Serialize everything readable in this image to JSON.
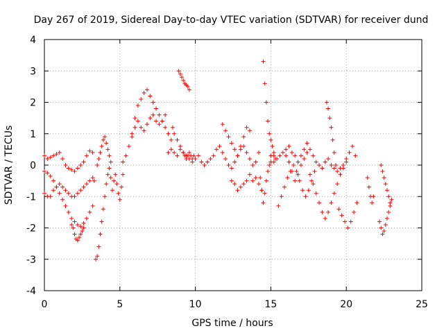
{
  "chart_data": {
    "type": "scatter",
    "title": "Day 267 of 2019, Sidereal Day-to-day VTEC variation (SDTVAR) for receiver dund",
    "xlabel": "GPS time / hours",
    "ylabel": "SDTVAR / TECUs",
    "xlim": [
      0,
      25
    ],
    "ylim": [
      -4,
      4
    ],
    "xticks": [
      0,
      5,
      10,
      15,
      20,
      25
    ],
    "yticks": [
      -4,
      -3,
      -2,
      -1,
      0,
      1,
      2,
      3,
      4
    ],
    "grid": true,
    "marker": "+",
    "color": "#ff0000",
    "series": [
      {
        "name": "SDTVAR",
        "x": [
          0.0,
          0.2,
          0.4,
          0.6,
          0.8,
          1.0,
          1.2,
          1.4,
          1.6,
          1.8,
          2.0,
          2.2,
          2.4,
          2.6,
          2.8,
          3.0,
          3.2,
          0.0,
          0.2,
          0.4,
          0.6,
          0.8,
          1.0,
          1.2,
          1.4,
          1.6,
          1.8,
          2.0,
          2.2,
          2.4,
          2.6,
          2.8,
          3.0,
          3.2,
          0.0,
          0.2,
          0.4,
          0.6,
          0.8,
          1.0,
          1.2,
          1.4,
          1.6,
          1.8,
          2.0,
          2.2,
          2.4,
          2.6,
          2.8,
          3.0,
          3.2,
          3.3,
          1.8,
          1.9,
          2.0,
          2.1,
          2.2,
          2.3,
          2.4,
          2.5,
          2.6,
          3.4,
          3.5,
          3.6,
          3.7,
          3.8,
          3.9,
          4.0,
          4.1,
          4.2,
          4.3,
          4.4,
          4.5,
          4.6,
          4.7,
          4.8,
          4.9,
          5.0,
          5.1,
          5.2,
          3.5,
          3.6,
          3.7,
          3.8,
          3.9,
          4.0,
          4.1,
          4.2,
          4.3,
          4.4,
          5.2,
          5.4,
          5.6,
          5.8,
          6.0,
          6.2,
          6.4,
          6.6,
          6.8,
          7.0,
          7.2,
          7.4,
          7.6,
          7.8,
          8.0,
          8.2,
          8.4,
          5.8,
          6.0,
          6.2,
          6.4,
          6.6,
          6.8,
          7.0,
          7.2,
          7.4,
          7.6,
          7.8,
          8.0,
          8.2,
          8.4,
          8.6,
          8.8,
          9.0,
          9.2,
          9.4,
          9.6,
          9.8,
          10.0,
          10.2,
          10.4,
          10.6,
          10.8,
          11.0,
          11.2,
          11.4,
          11.6,
          11.8,
          12.0,
          12.2,
          12.4,
          12.6,
          12.8,
          13.0,
          13.2,
          13.4,
          13.6,
          13.8,
          14.0,
          14.2,
          8.5,
          8.6,
          8.8,
          9.0,
          9.2,
          9.3,
          9.4,
          9.5,
          9.6,
          9.7,
          9.8,
          9.9,
          10.0,
          8.9,
          9.0,
          9.1,
          9.2,
          9.3,
          9.4,
          9.5,
          9.6,
          11.8,
          12.0,
          12.2,
          12.4,
          12.6,
          12.8,
          13.0,
          13.2,
          13.4,
          13.6,
          12.4,
          12.6,
          12.8,
          13.0,
          13.2,
          13.4,
          13.6,
          13.8,
          14.0,
          14.2,
          14.4,
          14.3,
          14.4,
          14.5,
          14.6,
          14.7,
          14.8,
          14.9,
          15.0,
          15.2,
          14.5,
          14.6,
          14.7,
          14.8,
          14.9,
          15.0,
          15.1,
          15.2,
          15.3,
          15.0,
          15.2,
          15.4,
          15.6,
          15.8,
          16.0,
          16.2,
          16.4,
          16.6,
          16.8,
          17.0,
          17.2,
          17.4,
          17.6,
          17.8,
          18.0,
          18.2,
          18.4,
          18.6,
          18.8,
          19.0,
          19.2,
          19.4,
          19.6,
          19.8,
          20.0,
          20.2,
          20.4,
          20.6,
          15.5,
          15.7,
          15.9,
          16.1,
          16.3,
          16.5,
          16.7,
          16.9,
          17.1,
          17.3,
          17.5,
          17.7,
          17.9,
          16.0,
          16.2,
          16.4,
          16.6,
          16.8,
          17.0,
          17.2,
          17.4,
          17.6,
          17.8,
          18.0,
          18.2,
          18.4,
          18.6,
          18.8,
          19.0,
          19.2,
          19.4,
          19.6,
          19.8,
          20.0,
          18.7,
          18.8,
          18.9,
          19.0,
          19.1,
          19.2,
          19.3,
          19.5,
          19.7,
          19.9,
          20.1,
          20.3,
          20.5,
          20.7,
          21.4,
          21.5,
          21.6,
          21.7,
          21.8,
          22.2,
          22.3,
          22.4,
          22.5,
          22.6,
          22.7,
          22.8,
          22.9,
          23.0,
          22.3,
          22.4,
          22.5,
          22.6,
          22.7,
          22.8,
          22.9
        ],
        "y": [
          0.3,
          0.2,
          0.25,
          0.3,
          0.35,
          0.4,
          0.2,
          0.0,
          -0.1,
          -0.15,
          -0.2,
          -0.1,
          0.0,
          0.1,
          0.3,
          0.45,
          0.4,
          -0.2,
          -0.25,
          -0.35,
          -0.5,
          -0.7,
          -0.9,
          -1.1,
          -1.3,
          -1.5,
          -1.7,
          -1.8,
          -1.9,
          -1.95,
          -1.85,
          -1.7,
          -1.5,
          -1.3,
          -0.9,
          -1.0,
          -1.0,
          -0.8,
          -0.7,
          -0.6,
          -0.7,
          -0.8,
          -0.9,
          -1.0,
          -1.0,
          -0.9,
          -0.8,
          -0.7,
          -0.6,
          -0.5,
          -0.4,
          -0.5,
          -1.9,
          -2.0,
          -2.2,
          -2.35,
          -2.4,
          -2.3,
          -2.2,
          -2.1,
          -2.0,
          -3.0,
          -2.9,
          -2.6,
          -2.2,
          -1.8,
          -1.4,
          -1.0,
          -0.6,
          -0.3,
          -0.1,
          -0.4,
          -0.8,
          -0.5,
          -0.3,
          -0.6,
          -0.9,
          -1.1,
          -0.7,
          -0.3,
          0.0,
          0.2,
          0.4,
          0.6,
          0.8,
          0.9,
          0.7,
          0.5,
          0.3,
          0.1,
          0.1,
          0.3,
          0.6,
          1.0,
          1.5,
          1.9,
          2.1,
          2.3,
          2.4,
          2.2,
          2.0,
          1.8,
          1.6,
          1.4,
          1.2,
          1.0,
          0.8,
          0.9,
          1.2,
          1.4,
          1.2,
          1.1,
          1.3,
          1.5,
          1.6,
          1.4,
          1.3,
          1.4,
          1.6,
          0.4,
          0.5,
          0.4,
          0.3,
          0.5,
          0.4,
          0.3,
          0.2,
          0.1,
          0.2,
          0.3,
          0.1,
          0.0,
          0.1,
          0.2,
          0.3,
          0.5,
          0.6,
          0.4,
          0.2,
          0.0,
          -0.1,
          0.1,
          0.3,
          0.5,
          0.6,
          0.4,
          0.2,
          0.0,
          0.1,
          0.4,
          1.2,
          1.0,
          0.8,
          0.6,
          0.4,
          0.3,
          0.2,
          0.3,
          0.4,
          0.3,
          0.2,
          0.3,
          0.2,
          3.0,
          2.9,
          2.8,
          2.7,
          2.6,
          2.55,
          2.5,
          2.4,
          1.3,
          1.1,
          0.9,
          0.7,
          0.5,
          0.3,
          0.6,
          0.9,
          1.2,
          1.1,
          -0.5,
          -0.6,
          -0.8,
          -0.7,
          -0.6,
          -0.5,
          -0.3,
          -0.5,
          -0.4,
          -0.6,
          -0.8,
          -0.4,
          -0.8,
          -1.2,
          -0.9,
          -0.5,
          -0.2,
          0.0,
          0.1,
          0.3,
          3.3,
          2.6,
          2.0,
          1.4,
          1.0,
          0.8,
          0.6,
          0.4,
          0.2,
          0.3,
          0.1,
          0.2,
          0.3,
          0.4,
          0.5,
          0.6,
          0.4,
          0.3,
          0.1,
          0.3,
          0.5,
          0.7,
          0.5,
          0.3,
          0.1,
          0.0,
          -0.1,
          0.1,
          0.2,
          0.0,
          -0.1,
          -0.2,
          -0.1,
          0.0,
          0.2,
          0.4,
          0.6,
          0.3,
          -1.3,
          -1.0,
          -0.7,
          -0.4,
          -0.2,
          0.0,
          -0.2,
          -0.5,
          -0.8,
          -1.0,
          -0.8,
          -0.5,
          -0.2,
          0.3,
          0.1,
          -0.2,
          -0.5,
          -0.3,
          0.0,
          0.2,
          0.4,
          -0.3,
          -0.6,
          -0.9,
          -1.2,
          -1.5,
          -1.7,
          -1.5,
          -1.2,
          -0.9,
          -0.6,
          -0.3,
          -0.1,
          0.1,
          2.0,
          1.8,
          1.5,
          1.2,
          0.8,
          0.4,
          0.0,
          -1.4,
          -1.6,
          -1.8,
          -2.0,
          -1.8,
          -1.5,
          -1.2,
          -0.4,
          -0.7,
          -1.0,
          -1.2,
          -1.0,
          -1.8,
          -2.0,
          -2.2,
          -2.1,
          -1.9,
          -1.7,
          -1.5,
          -1.3,
          -1.1,
          0.0,
          -0.2,
          -0.4,
          -0.6,
          -0.8,
          -1.0,
          -1.2
        ]
      }
    ]
  }
}
